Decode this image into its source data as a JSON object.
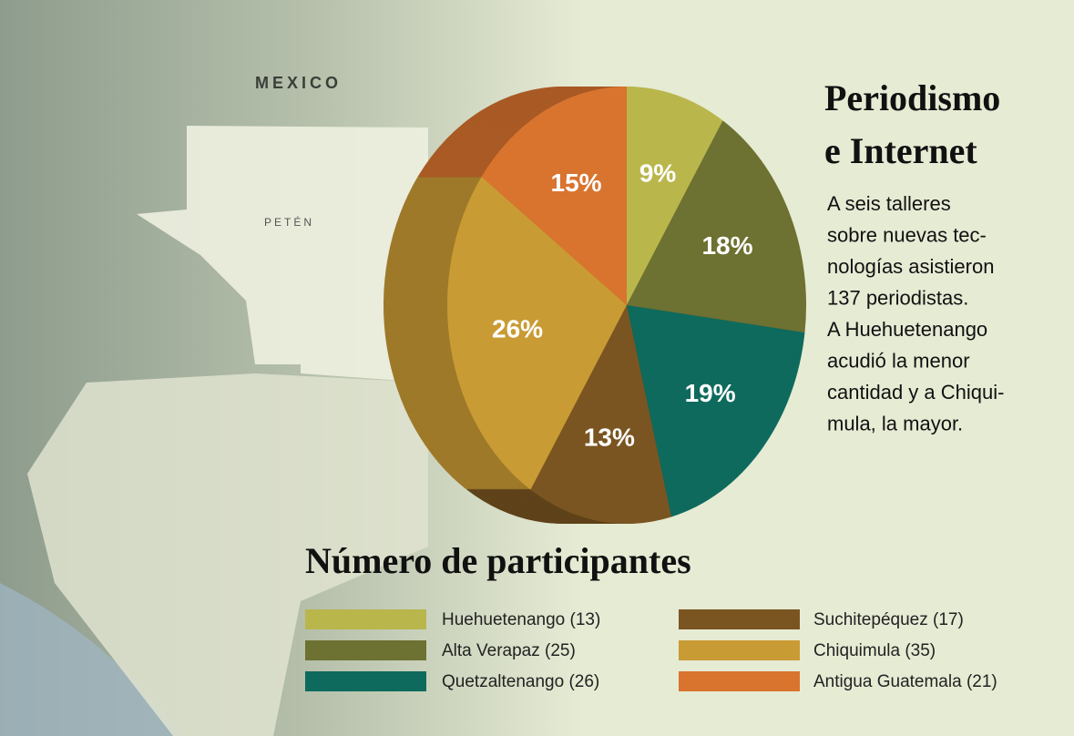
{
  "chart_data": {
    "type": "pie",
    "title_lines": [
      "Periodismo",
      "e Internet"
    ],
    "description_lines": [
      "A seis talleres",
      "sobre nuevas tec-",
      "nologías asistieron",
      "137 periodistas.",
      "A Huehuetenango",
      "acudió la menor",
      "cantidad y a Chiqui-",
      "mula, la mayor."
    ],
    "legend_title": "Número de participantes",
    "map_labels": [
      "MEXICO",
      "PETÉN"
    ],
    "categories": [
      "Huehuetenango (13)",
      "Alta Verapaz (25)",
      "Quetzaltenango (26)",
      "Suchitepéquez (17)",
      "Chiquimula (35)",
      "Antigua Guatemala (21)"
    ],
    "values": [
      9,
      18,
      19,
      13,
      26,
      15
    ],
    "value_labels": [
      "9%",
      "18%",
      "19%",
      "13%",
      "26%",
      "15%"
    ],
    "colors": [
      "#b9b64c",
      "#6d7131",
      "#0e6a5d",
      "#7a5521",
      "#c99b34",
      "#d9742f"
    ]
  }
}
